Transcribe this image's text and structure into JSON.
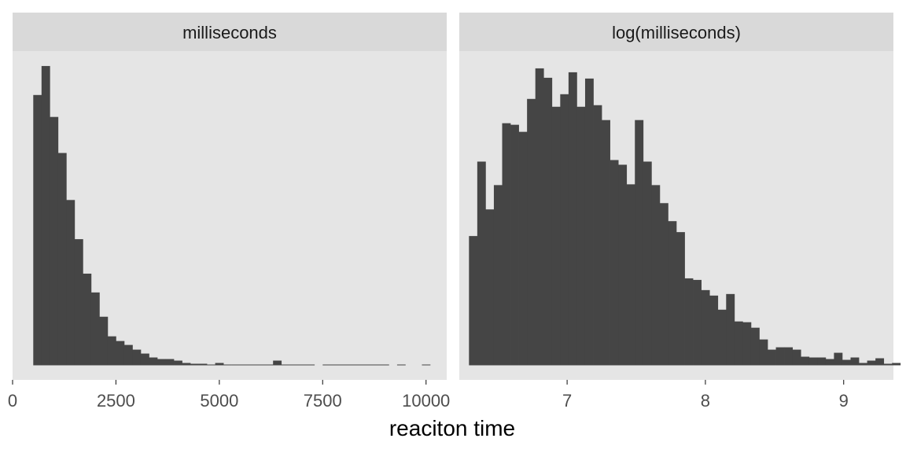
{
  "chart_data": [
    {
      "type": "bar",
      "title": "milliseconds",
      "xlim": [
        0,
        10500
      ],
      "x_ticks": [
        0,
        2500,
        5000,
        7500,
        10000
      ],
      "x_tick_labels": [
        "0",
        "2500",
        "5000",
        "7500",
        "10000"
      ],
      "bin_start": 500,
      "bin_width": 200,
      "values": [
        345,
        382,
        317,
        271,
        211,
        161,
        117,
        93,
        62,
        37,
        31,
        26,
        20,
        15,
        10,
        8,
        8,
        6,
        3,
        2,
        2,
        1,
        3,
        1,
        1,
        1,
        1,
        1,
        1,
        6,
        1,
        1,
        1,
        1,
        0,
        1,
        1,
        1,
        1,
        1,
        1,
        1,
        1,
        0,
        1,
        0,
        0,
        1,
        0,
        0
      ],
      "bar_color": "#454545",
      "panel_color": "#E5E5E5"
    },
    {
      "type": "bar",
      "title": "log(milliseconds)",
      "xlim": [
        6.22,
        9.36
      ],
      "x_ticks": [
        7,
        8,
        9
      ],
      "x_tick_labels": [
        "7",
        "8",
        "9"
      ],
      "bin_start": 6.29,
      "bin_width": 0.06,
      "values": [
        165,
        260,
        199,
        230,
        309,
        307,
        298,
        340,
        379,
        367,
        330,
        346,
        374,
        330,
        366,
        332,
        313,
        262,
        256,
        231,
        313,
        260,
        230,
        207,
        184,
        170,
        111,
        109,
        96,
        89,
        71,
        91,
        56,
        55,
        48,
        33,
        20,
        23,
        23,
        20,
        11,
        10,
        10,
        8,
        16,
        7,
        10,
        3,
        6,
        9,
        2,
        3
      ],
      "bar_color": "#454545",
      "panel_color": "#E5E5E5"
    }
  ],
  "xlabel": "reaciton time",
  "ylim": [
    0,
    400
  ]
}
